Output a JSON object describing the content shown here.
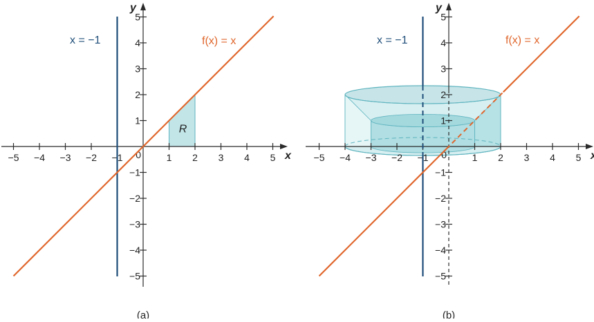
{
  "colors": {
    "axis": "#2b2b2b",
    "line": "#e0662c",
    "vertical_line": "#1f4e79",
    "fill": "#8fd0d6",
    "fill_dark": "#5fb4bf"
  },
  "panels": [
    {
      "caption": "(a)",
      "x_axis_label": "x",
      "y_axis_label": "y",
      "fn_label": "f(x) = x",
      "vline_label": "x = −1",
      "region_label": "R",
      "x_ticks": [
        "−5",
        "−4",
        "−3",
        "−2",
        "−1",
        "1",
        "2",
        "3",
        "4",
        "5"
      ],
      "y_ticks": [
        "−5",
        "−4",
        "−3",
        "−2",
        "−1",
        "1",
        "2",
        "3",
        "4",
        "5"
      ],
      "origin_label": "0"
    },
    {
      "caption": "(b)",
      "x_axis_label": "x",
      "y_axis_label": "y",
      "fn_label": "f(x) = x",
      "vline_label": "x = −1",
      "x_ticks": [
        "−5",
        "−4",
        "−3",
        "−2",
        "−1",
        "1",
        "2",
        "3",
        "4",
        "5"
      ],
      "y_ticks": [
        "−5",
        "−4",
        "−3",
        "−2",
        "−1",
        "1",
        "2",
        "3",
        "4",
        "5"
      ],
      "origin_label": "0"
    }
  ],
  "chart_data": {
    "type": "line",
    "function": "f(x) = x",
    "x_range": [
      -5,
      5
    ],
    "y_range": [
      -5,
      5
    ],
    "vertical_line_x": -1,
    "region_R": {
      "x_from": 1,
      "x_to": 2,
      "y_from": 0,
      "y_to": "f(x)"
    },
    "solid_of_revolution": {
      "axis": "x = -1",
      "outer_radius": 3,
      "inner_radius": 2,
      "height": 2
    }
  }
}
